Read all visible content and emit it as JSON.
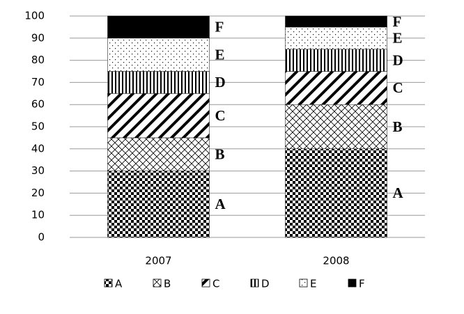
{
  "chart_data": {
    "type": "stacked-bar",
    "categories": [
      "2007",
      "2008"
    ],
    "series": [
      {
        "name": "A",
        "values": [
          30,
          40
        ]
      },
      {
        "name": "B",
        "values": [
          15,
          20
        ]
      },
      {
        "name": "C",
        "values": [
          20,
          15
        ]
      },
      {
        "name": "D",
        "values": [
          10,
          10
        ]
      },
      {
        "name": "E",
        "values": [
          15,
          10
        ]
      },
      {
        "name": "F",
        "values": [
          10,
          5
        ]
      }
    ],
    "ylim": [
      0,
      100
    ],
    "yticks": [
      0,
      10,
      20,
      30,
      40,
      50,
      60,
      70,
      80,
      90,
      100
    ],
    "grid": true
  }
}
